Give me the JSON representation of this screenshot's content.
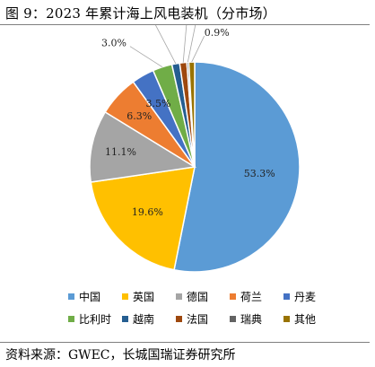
{
  "figure": {
    "title": "图 9：2023 年累计海上风电装机（分市场）",
    "source": "资料来源：GWEC，长城国瑞证券研究所"
  },
  "chart_data": {
    "type": "pie",
    "title": "",
    "unit": "%",
    "categories": [
      "中国",
      "英国",
      "德国",
      "荷兰",
      "丹麦",
      "比利时",
      "越南",
      "法国",
      "瑞典",
      "其他"
    ],
    "values": [
      53.3,
      19.6,
      11.1,
      6.3,
      3.5,
      3.0,
      1.2,
      1.1,
      0.3,
      0.9
    ],
    "labels": [
      "53.3%",
      "19.6%",
      "11.1%",
      "6.3%",
      "3.5%",
      "3.0%",
      "1.2%",
      "1.1%",
      "0.3%",
      "0.9%"
    ],
    "colors": [
      "#5b9bd5",
      "#ffc000",
      "#a5a5a5",
      "#ed7d31",
      "#4472c4",
      "#70ad47",
      "#255e91",
      "#9e480e",
      "#636363",
      "#997300"
    ],
    "legend_position": "bottom",
    "start_angle": "12 o'clock",
    "direction": "clockwise"
  }
}
